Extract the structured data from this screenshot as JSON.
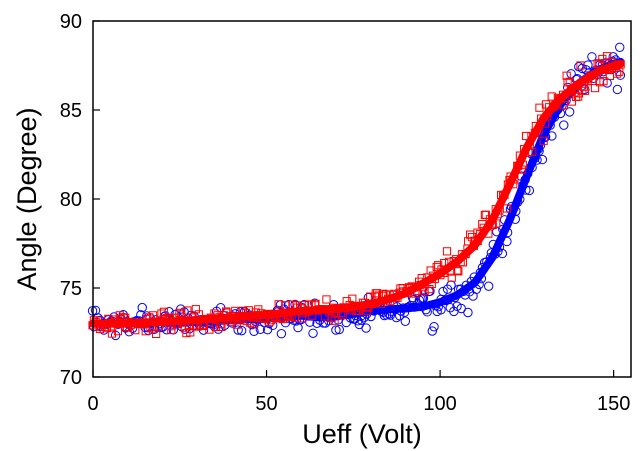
{
  "chart_data": {
    "type": "scatter",
    "title": "",
    "xlabel": "Ueff (Volt)",
    "ylabel": "Angle (Degree)",
    "xlim": [
      0,
      155
    ],
    "ylim": [
      70,
      90
    ],
    "xticks": [
      0,
      50,
      100,
      150
    ],
    "yticks": [
      70,
      75,
      80,
      85,
      90
    ],
    "grid": false,
    "legend": "none",
    "series": [
      {
        "marker": "circle",
        "color": "#0000ff",
        "fit_x": [
          0,
          10,
          20,
          30,
          40,
          50,
          55,
          60,
          65,
          70,
          75,
          80,
          85,
          90,
          95,
          100,
          105,
          110,
          115,
          120,
          125,
          130,
          135,
          140,
          145,
          150,
          152
        ],
        "fit_y": [
          73.0,
          73.0,
          73.1,
          73.1,
          73.2,
          73.3,
          73.35,
          73.45,
          73.35,
          73.4,
          73.55,
          73.7,
          73.8,
          73.85,
          73.95,
          74.2,
          74.6,
          75.3,
          76.7,
          78.8,
          81.3,
          83.7,
          85.4,
          86.5,
          87.2,
          87.6,
          87.7
        ],
        "noise_seed": 7,
        "noise_sd": 0.75,
        "point_count": 320
      },
      {
        "marker": "square",
        "color": "#ff0000",
        "fit_x": [
          0,
          10,
          20,
          30,
          40,
          50,
          60,
          70,
          75,
          80,
          85,
          90,
          95,
          100,
          105,
          110,
          115,
          120,
          125,
          130,
          135,
          140,
          145,
          150,
          152
        ],
        "fit_y": [
          73.0,
          73.0,
          73.1,
          73.2,
          73.35,
          73.5,
          73.7,
          73.85,
          73.95,
          74.1,
          74.35,
          74.7,
          75.25,
          75.8,
          76.5,
          77.4,
          78.8,
          80.8,
          82.9,
          84.6,
          85.7,
          86.5,
          87.1,
          87.5,
          87.6
        ],
        "noise_seed": 13,
        "noise_sd": 0.55,
        "point_count": 320
      }
    ]
  }
}
